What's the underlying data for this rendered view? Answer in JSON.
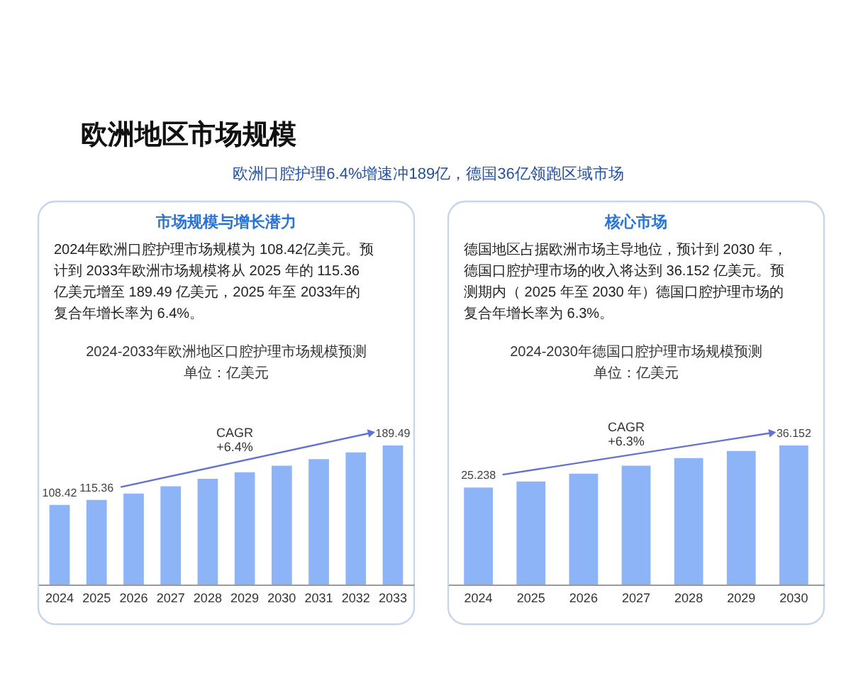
{
  "chart_data": [
    {
      "type": "other",
      "title": "欧洲地区市场规模",
      "subtitle": "欧洲口腔护理6.4%增速冲189亿，德国36亿领跑区域市场"
    },
    {
      "type": "bar",
      "title": "2024-2033年欧洲地区口腔护理市场规模预测",
      "subtitle": "单位：亿美元",
      "annotations": [
        "市场规模与增长潜力",
        "2024年欧洲口腔护理市场规模为 108.42亿美元。预计到 2033年欧洲市场规模将从 2025 年的 115.36 亿美元增至 189.49 亿美元，2025 年至 2033年的复合年增长率为 6.4%。",
        "CAGR\n+6.4%"
      ],
      "categories": [
        "2024",
        "2025",
        "2026",
        "2027",
        "2028",
        "2029",
        "2030",
        "2031",
        "2032",
        "2033"
      ],
      "values": [
        108.42,
        115.36,
        124,
        134,
        144,
        153,
        162,
        171,
        180,
        189.49
      ],
      "value_labels": [
        "108.42",
        "115.36",
        null,
        null,
        null,
        null,
        null,
        null,
        null,
        "189.49"
      ],
      "color": "#8db4f6",
      "tick_labels": "x"
    },
    {
      "type": "bar",
      "title": "2024-2030年德国口腔护理市场规模预测",
      "subtitle": "单位：亿美元",
      "annotations": [
        "核心市场",
        "德国地区占据欧洲市场主导地位，预计到 2030 年，德国口腔护理市场的收入将达到 36.152 亿美元。预测期内（ 2025 年至 2030 年）德国口腔护理市场的复合年增长率为 6.3%。",
        "CAGR\n+6.3%"
      ],
      "categories": [
        "2024",
        "2025",
        "2026",
        "2027",
        "2028",
        "2029",
        "2030"
      ],
      "values": [
        25.238,
        26.8,
        28.8,
        30.9,
        32.9,
        34.7,
        36.152
      ],
      "value_labels": [
        "25.238",
        null,
        null,
        null,
        null,
        null,
        "36.152"
      ],
      "color": "#8db4f6",
      "tick_labels": "x"
    }
  ]
}
